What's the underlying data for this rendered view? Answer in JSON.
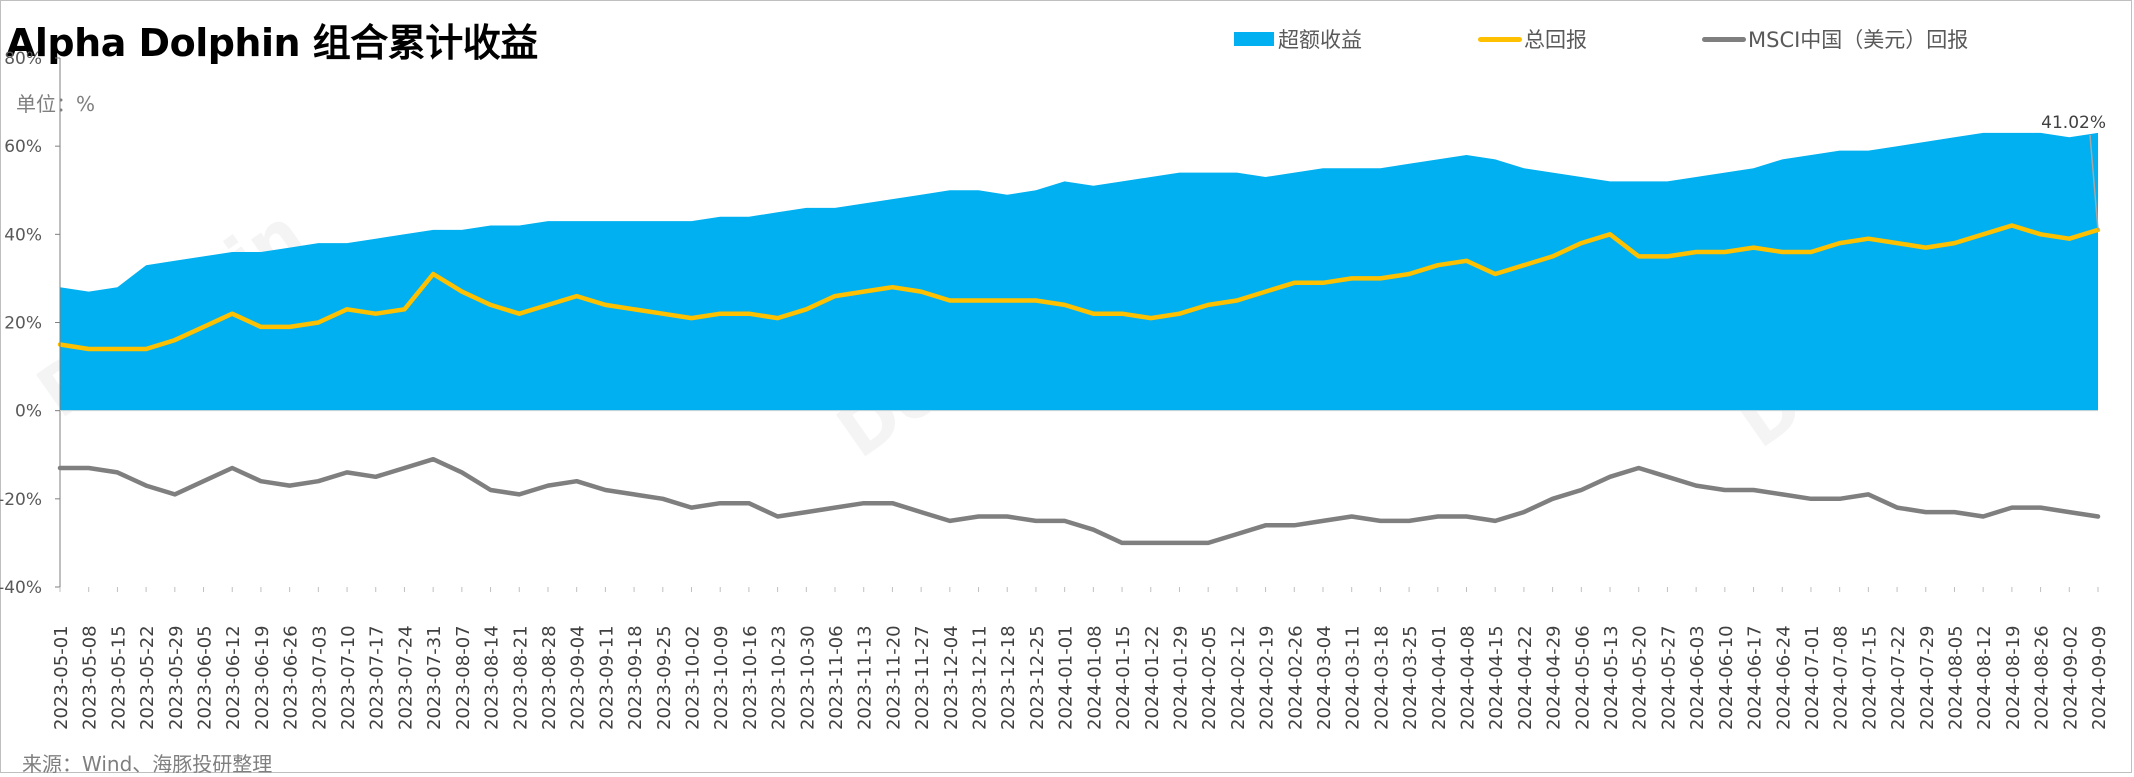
{
  "title": "Alpha Dolphin 组合累计收益",
  "unit_label": "单位：%",
  "source": "来源：Wind、海豚投研整理",
  "chart_data": {
    "type": "area",
    "title": "Alpha Dolphin 组合累计收益",
    "xlabel": "",
    "ylabel": "单位：%",
    "ylim": [
      -40,
      80
    ],
    "yticks": [
      -40,
      -20,
      0,
      20,
      40,
      60,
      80
    ],
    "ytick_labels": [
      "-40%",
      "-20%",
      "0%",
      "20%",
      "40%",
      "60%",
      "80%"
    ],
    "grid": false,
    "legend_position": "top",
    "x_tick_labels": [
      "2023-05-01",
      "2023-05-08",
      "2023-05-15",
      "2023-05-22",
      "2023-05-29",
      "2023-06-05",
      "2023-06-12",
      "2023-06-19",
      "2023-06-26",
      "2023-07-03",
      "2023-07-10",
      "2023-07-17",
      "2023-07-24",
      "2023-07-31",
      "2023-08-07",
      "2023-08-14",
      "2023-08-21",
      "2023-08-28",
      "2023-09-04",
      "2023-09-11",
      "2023-09-18",
      "2023-09-25",
      "2023-10-02",
      "2023-10-09",
      "2023-10-16",
      "2023-10-23",
      "2023-10-30",
      "2023-11-06",
      "2023-11-13",
      "2023-11-20",
      "2023-11-27",
      "2023-12-04",
      "2023-12-11",
      "2023-12-18",
      "2023-12-25",
      "2024-01-01",
      "2024-01-08",
      "2024-01-15",
      "2024-01-22",
      "2024-01-29",
      "2024-02-05",
      "2024-02-12",
      "2024-02-19",
      "2024-02-26",
      "2024-03-04",
      "2024-03-11",
      "2024-03-18",
      "2024-03-25",
      "2024-04-01",
      "2024-04-08",
      "2024-04-15",
      "2024-04-22",
      "2024-04-29",
      "2024-05-06",
      "2024-05-13",
      "2024-05-20",
      "2024-05-27",
      "2024-06-03",
      "2024-06-10",
      "2024-06-17",
      "2024-06-24",
      "2024-07-01",
      "2024-07-08",
      "2024-07-15",
      "2024-07-22",
      "2024-07-29",
      "2024-08-05",
      "2024-08-12",
      "2024-08-19",
      "2024-08-26",
      "2024-09-02",
      "2024-09-09"
    ],
    "series": [
      {
        "name": "超额收益",
        "type": "area",
        "color": "#00b0f0",
        "values": [
          28,
          27,
          28,
          33,
          34,
          35,
          36,
          36,
          37,
          38,
          38,
          39,
          40,
          41,
          41,
          42,
          42,
          43,
          43,
          43,
          43,
          43,
          43,
          44,
          44,
          45,
          46,
          46,
          47,
          48,
          49,
          50,
          50,
          49,
          50,
          52,
          51,
          52,
          53,
          54,
          54,
          54,
          53,
          54,
          55,
          55,
          55,
          56,
          57,
          58,
          57,
          55,
          54,
          53,
          52,
          52,
          52,
          53,
          54,
          55,
          57,
          58,
          59,
          59,
          60,
          61,
          62,
          63,
          63,
          63,
          62,
          63
        ]
      },
      {
        "name": "总回报",
        "type": "line",
        "color": "#ffc000",
        "values": [
          15,
          14,
          14,
          14,
          16,
          19,
          22,
          19,
          19,
          20,
          23,
          22,
          23,
          31,
          27,
          24,
          22,
          24,
          26,
          24,
          23,
          22,
          21,
          22,
          22,
          21,
          23,
          26,
          27,
          28,
          27,
          25,
          25,
          25,
          25,
          24,
          22,
          22,
          21,
          22,
          24,
          25,
          27,
          29,
          29,
          30,
          30,
          31,
          33,
          34,
          31,
          33,
          35,
          38,
          40,
          35,
          35,
          36,
          36,
          37,
          36,
          36,
          38,
          39,
          38,
          37,
          38,
          40,
          42,
          40,
          39,
          41
        ]
      },
      {
        "name": "MSCI中国（美元）回报",
        "type": "line",
        "color": "#7f7f7f",
        "values": [
          -13,
          -13,
          -14,
          -17,
          -19,
          -16,
          -13,
          -16,
          -17,
          -16,
          -14,
          -15,
          -13,
          -11,
          -14,
          -18,
          -19,
          -17,
          -16,
          -18,
          -19,
          -20,
          -22,
          -21,
          -21,
          -24,
          -23,
          -22,
          -21,
          -21,
          -23,
          -25,
          -24,
          -24,
          -25,
          -25,
          -27,
          -30,
          -30,
          -30,
          -30,
          -28,
          -26,
          -26,
          -25,
          -24,
          -25,
          -25,
          -24,
          -24,
          -25,
          -23,
          -20,
          -18,
          -15,
          -13,
          -15,
          -17,
          -18,
          -18,
          -19,
          -20,
          -20,
          -19,
          -22,
          -23,
          -23,
          -24,
          -22,
          -22,
          -23,
          -24
        ]
      }
    ],
    "annotations": [
      {
        "text": "41.02%",
        "x": "2024-09-09",
        "y": 41.02
      }
    ]
  },
  "legend": [
    {
      "label": "超额收益",
      "color": "#00b0f0",
      "shape": "box"
    },
    {
      "label": "总回报",
      "color": "#ffc000",
      "shape": "line"
    },
    {
      "label": "MSCI中国（美元）回报",
      "color": "#7f7f7f",
      "shape": "line"
    }
  ]
}
